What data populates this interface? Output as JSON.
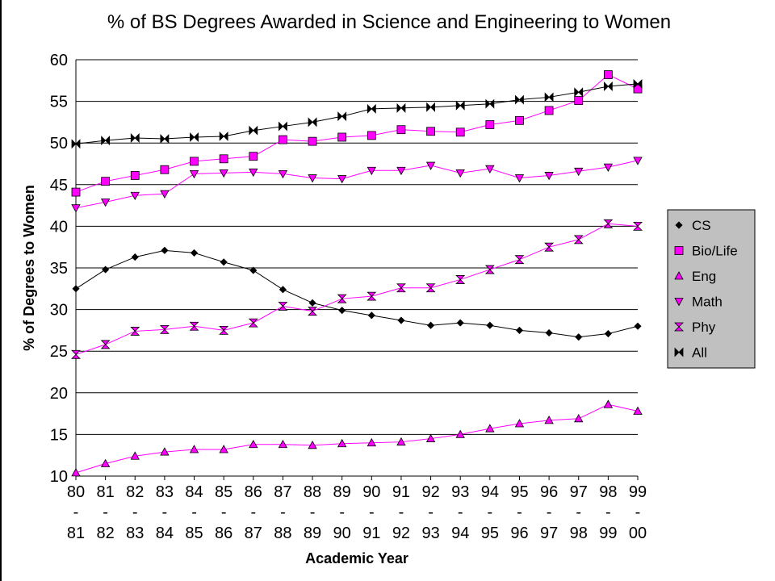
{
  "chart_data": {
    "type": "line",
    "title": "% of BS Degrees Awarded in Science and Engineering to Women",
    "xlabel": "Academic Year",
    "ylabel": "% of Degrees to Women",
    "categories": [
      "80-81",
      "81-82",
      "82-83",
      "83-84",
      "84-85",
      "85-86",
      "86-87",
      "87-88",
      "88-89",
      "89-90",
      "90-91",
      "91-92",
      "92-93",
      "93-94",
      "94-95",
      "95-96",
      "96-97",
      "97-98",
      "98-99",
      "99-00"
    ],
    "ylim": [
      10,
      60
    ],
    "yticks": [
      10,
      15,
      20,
      25,
      30,
      35,
      40,
      45,
      50,
      55,
      60
    ],
    "grid": "horizontal",
    "legend_position": "right",
    "series": [
      {
        "name": "CS",
        "marker": "diamond",
        "color": "#000000",
        "values": [
          32.5,
          34.8,
          36.3,
          37.1,
          36.8,
          35.7,
          34.7,
          32.4,
          30.8,
          29.9,
          29.3,
          28.7,
          28.1,
          28.4,
          28.1,
          27.5,
          27.2,
          26.7,
          27.1,
          28.0
        ]
      },
      {
        "name": "Bio/Life",
        "marker": "square",
        "color": "#ff00ff",
        "values": [
          44.1,
          45.4,
          46.1,
          46.8,
          47.8,
          48.1,
          48.4,
          50.4,
          50.2,
          50.7,
          50.9,
          51.6,
          51.4,
          51.3,
          52.2,
          52.7,
          53.9,
          55.1,
          58.2,
          56.5
        ]
      },
      {
        "name": "Eng",
        "marker": "triangle-up",
        "color": "#ff00ff",
        "values": [
          10.4,
          11.5,
          12.4,
          12.9,
          13.2,
          13.2,
          13.8,
          13.8,
          13.7,
          13.9,
          14.0,
          14.1,
          14.5,
          15.0,
          15.7,
          16.3,
          16.7,
          16.9,
          18.6,
          17.8
        ]
      },
      {
        "name": "Math",
        "marker": "triangle-down",
        "color": "#ff00ff",
        "values": [
          42.2,
          42.9,
          43.7,
          43.9,
          46.3,
          46.4,
          46.5,
          46.3,
          45.8,
          45.7,
          46.7,
          46.7,
          47.3,
          46.4,
          46.9,
          45.8,
          46.1,
          46.6,
          47.1,
          47.9
        ]
      },
      {
        "name": "Phy",
        "marker": "hourglass",
        "color": "#ff00ff",
        "values": [
          24.6,
          25.8,
          27.4,
          27.6,
          28.0,
          27.5,
          28.4,
          30.4,
          29.8,
          31.3,
          31.6,
          32.6,
          32.6,
          33.6,
          34.8,
          36.0,
          37.5,
          38.4,
          40.3,
          40.0
        ]
      },
      {
        "name": "All",
        "marker": "bowtie",
        "color": "#000000",
        "values": [
          49.9,
          50.3,
          50.6,
          50.5,
          50.7,
          50.8,
          51.5,
          52.0,
          52.5,
          53.2,
          54.1,
          54.2,
          54.3,
          54.5,
          54.7,
          55.2,
          55.5,
          56.1,
          56.8,
          57.1
        ]
      }
    ]
  }
}
